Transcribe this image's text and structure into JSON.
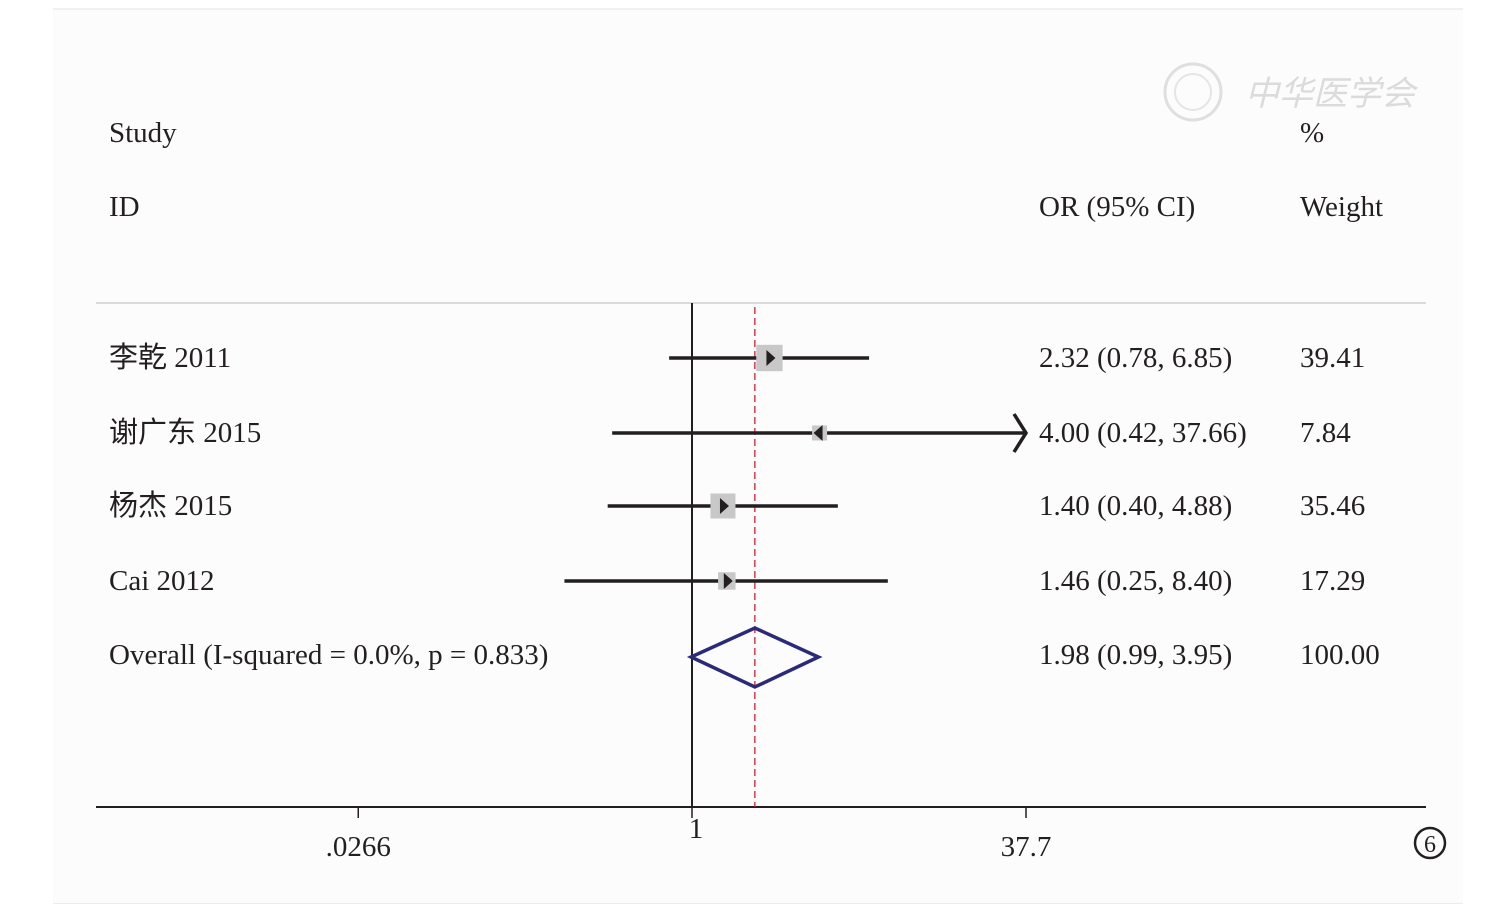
{
  "chart_data": {
    "type": "forest",
    "scale": "log",
    "headers": {
      "study_line1": "Study",
      "study_line2": "ID",
      "or_header": "OR (95% CI)",
      "weight_line1": "%",
      "weight_line2": "Weight"
    },
    "studies": [
      {
        "label": "李乾 2011",
        "or": 2.32,
        "lo": 0.78,
        "hi": 6.85,
        "ci_text": "2.32 (0.78, 6.85)",
        "weight": 39.41,
        "weight_text": "39.41"
      },
      {
        "label": "谢广东 2015",
        "or": 4.0,
        "lo": 0.42,
        "hi": 37.66,
        "ci_text": "4.00 (0.42, 37.66)",
        "weight": 7.84,
        "weight_text": "7.84",
        "arrow_right": true
      },
      {
        "label": "杨杰 2015",
        "or": 1.4,
        "lo": 0.4,
        "hi": 4.88,
        "ci_text": "1.40 (0.40, 4.88)",
        "weight": 35.46,
        "weight_text": "35.46"
      },
      {
        "label": "Cai 2012",
        "or": 1.46,
        "lo": 0.25,
        "hi": 8.4,
        "ci_text": "1.46 (0.25, 8.40)",
        "weight": 17.29,
        "weight_text": "17.29"
      }
    ],
    "overall": {
      "label": "Overall  (I-squared = 0.0%, p = 0.833)",
      "or": 1.98,
      "lo": 0.99,
      "hi": 3.95,
      "ci_text": "1.98 (0.99, 3.95)",
      "weight_text": "100.00"
    },
    "xticks": [
      {
        "value": 0.0266,
        "label": ".0266"
      },
      {
        "value": 1,
        "label": "1"
      },
      {
        "value": 37.7,
        "label": "37.7"
      }
    ],
    "xlim": [
      0.0266,
      37.7
    ],
    "null_line": 1,
    "colors": {
      "line": "#231f20",
      "box": "#c8c8c8",
      "diamond": "#2b2a7a",
      "overall_line": "#d0202e"
    }
  },
  "figure_number": "6",
  "watermark": "中华医学会"
}
